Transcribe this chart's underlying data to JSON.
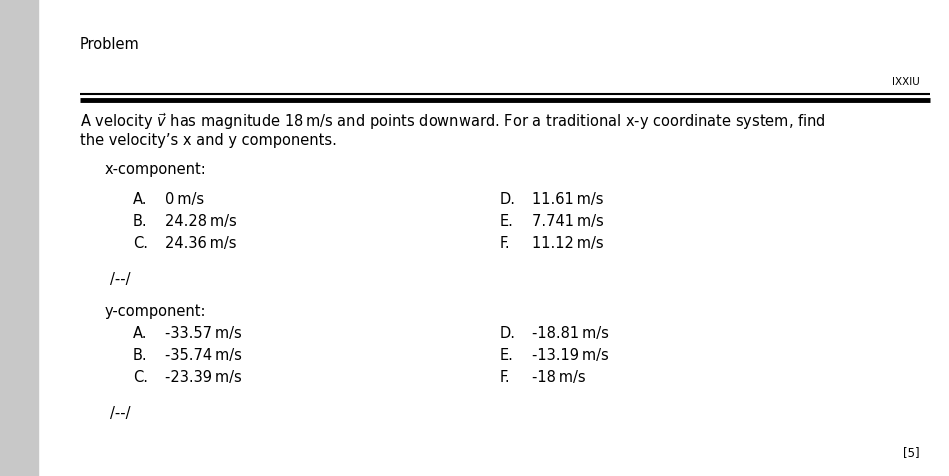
{
  "bg_color": "#ffffff",
  "left_strip_color": "#c8c8c8",
  "header_label": "Problem",
  "rule_label": "IXXIU",
  "question_text_line1": "A velocity $\\vec{v}$ has magnitude 18 m/s and points downward. For a traditional x-y coordinate system, find",
  "question_text_line2": "the velocity’s x and y components.",
  "x_section_label": "x-component:",
  "x_options_left": [
    [
      "A.",
      "0 m/s"
    ],
    [
      "B.",
      "24.28 m/s"
    ],
    [
      "C.",
      "24.36 m/s"
    ]
  ],
  "x_options_right": [
    [
      "D.",
      "11.61 m/s"
    ],
    [
      "E.",
      "7.741 m/s"
    ],
    [
      "F.",
      "11.12 m/s"
    ]
  ],
  "x_dash": "/--/",
  "y_section_label": "y-component:",
  "y_options_left": [
    [
      "A.",
      "-33.57 m/s"
    ],
    [
      "B.",
      "-35.74 m/s"
    ],
    [
      "C.",
      "-23.39 m/s"
    ]
  ],
  "y_options_right": [
    [
      "D.",
      "-18.81 m/s"
    ],
    [
      "E.",
      "-13.19 m/s"
    ],
    [
      "F.",
      "-18 m/s"
    ]
  ],
  "y_dash": "/--/",
  "score_label": "[5]",
  "font_size_header": 10.5,
  "font_size_rule": 7.5,
  "font_size_question": 10.5,
  "font_size_section": 10.5,
  "font_size_options": 10.5,
  "font_size_score": 8.5,
  "text_color": "#000000",
  "rule_color": "#111111"
}
